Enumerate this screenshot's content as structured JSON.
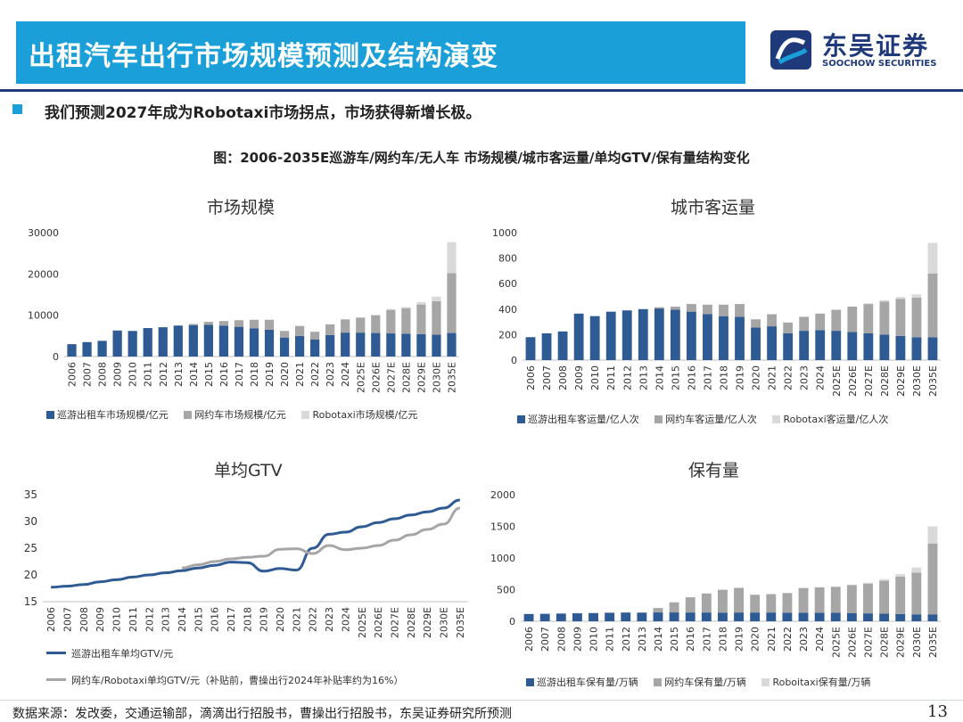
{
  "header": {
    "title": "出租汽车出行市场规模预测及结构演变"
  },
  "logo": {
    "cn": "东吴证券",
    "en": "SOOCHOW SECURITIES"
  },
  "bullet": "我们预测2027年成为Robotaxi市场拐点，市场获得新增长极。",
  "figure_title": "图：2006-2035E巡游车/网约车/无人车 市场规模/城市客运量/单均GTV/保有量结构变化",
  "colors": {
    "taxi": "#2f5b94",
    "ridehail": "#a6a6a6",
    "robotaxi": "#d9d9d9",
    "accent": "#1a9fd8"
  },
  "chart_data": [
    {
      "type": "stacked_bar",
      "title": "市场规模",
      "categories": [
        "2006",
        "2007",
        "2008",
        "2009",
        "2010",
        "2011",
        "2012",
        "2013",
        "2014",
        "2015",
        "2016",
        "2017",
        "2018",
        "2019",
        "2020",
        "2021",
        "2022",
        "2023",
        "2024",
        "2025E",
        "2026E",
        "2027E",
        "2028E",
        "2029E",
        "2030E",
        "2035E"
      ],
      "yticks": [
        "0",
        "10000",
        "20000",
        "30000"
      ],
      "ylim": [
        0,
        30000
      ],
      "series": [
        {
          "name": "巡游出租车市场规模/亿元",
          "values": [
            3000,
            3500,
            3800,
            6300,
            6200,
            6900,
            7100,
            7500,
            7600,
            7700,
            7500,
            7200,
            6800,
            6500,
            4600,
            5000,
            4100,
            5200,
            5800,
            5800,
            5700,
            5600,
            5500,
            5400,
            5300,
            5700
          ]
        },
        {
          "name": "网约车市场规模/亿元",
          "values": [
            0,
            0,
            0,
            0,
            0,
            0,
            0,
            0,
            300,
            700,
            1100,
            1600,
            2100,
            2400,
            1600,
            2400,
            1900,
            2600,
            3200,
            3600,
            4300,
            5700,
            6200,
            7200,
            8100,
            14500
          ]
        },
        {
          "name": "Robotaxi市场规模/亿元",
          "values": [
            0,
            0,
            0,
            0,
            0,
            0,
            0,
            0,
            0,
            0,
            0,
            0,
            0,
            0,
            0,
            0,
            0,
            0,
            0,
            100,
            100,
            200,
            300,
            600,
            1100,
            7500
          ]
        }
      ]
    },
    {
      "type": "stacked_bar",
      "title": "城市客运量",
      "categories": [
        "2006",
        "2007",
        "2008",
        "2009",
        "2010",
        "2011",
        "2012",
        "2013",
        "2014",
        "2015",
        "2016",
        "2017",
        "2018",
        "2019",
        "2020",
        "2021",
        "2022",
        "2023",
        "2024",
        "2025E",
        "2026E",
        "2027E",
        "2028E",
        "2029E",
        "2030E",
        "2035E"
      ],
      "yticks": [
        "0",
        "200",
        "400",
        "600",
        "800",
        "1000"
      ],
      "ylim": [
        0,
        1000
      ],
      "series": [
        {
          "name": "巡游出租车客运量/亿人次",
          "values": [
            180,
            210,
            225,
            365,
            345,
            380,
            390,
            400,
            405,
            395,
            380,
            360,
            345,
            340,
            255,
            265,
            210,
            230,
            235,
            230,
            220,
            210,
            200,
            190,
            180,
            180
          ]
        },
        {
          "name": "网约车客运量/亿人次",
          "values": [
            0,
            0,
            0,
            0,
            0,
            0,
            0,
            0,
            10,
            25,
            60,
            75,
            90,
            100,
            65,
            95,
            85,
            110,
            130,
            165,
            200,
            230,
            260,
            290,
            310,
            500
          ]
        },
        {
          "name": "Robotaxi客运量/亿人次",
          "values": [
            0,
            0,
            0,
            0,
            0,
            0,
            0,
            0,
            0,
            0,
            0,
            0,
            0,
            0,
            0,
            0,
            0,
            0,
            0,
            0,
            0,
            5,
            10,
            15,
            25,
            240
          ]
        }
      ]
    },
    {
      "type": "line",
      "title": "单均GTV",
      "categories": [
        "2006",
        "2007",
        "2008",
        "2009",
        "2010",
        "2011",
        "2012",
        "2013",
        "2014",
        "2015",
        "2016",
        "2017",
        "2018",
        "2019",
        "2020",
        "2021",
        "2022",
        "2023",
        "2024",
        "2025E",
        "2026E",
        "2027E",
        "2028E",
        "2029E",
        "2030E",
        "2035E"
      ],
      "yticks": [
        "15",
        "20",
        "25",
        "30",
        "35"
      ],
      "ylim": [
        15,
        35
      ],
      "series": [
        {
          "name": "巡游出租车单均GTV/元",
          "values": [
            17.7,
            17.9,
            18.2,
            18.7,
            19.1,
            19.6,
            20.0,
            20.4,
            20.8,
            21.3,
            21.8,
            22.4,
            22.3,
            20.7,
            21.2,
            20.9,
            25.0,
            27.6,
            28.0,
            29.0,
            29.8,
            30.5,
            31.2,
            31.8,
            32.5,
            34.0
          ]
        },
        {
          "name": "网约车/Robotaxi单均GTV/元（补贴前，曹操出行2024年补贴率约为16%）",
          "values": [
            null,
            null,
            null,
            null,
            null,
            null,
            null,
            null,
            21.3,
            21.9,
            22.5,
            23.0,
            23.3,
            23.5,
            24.8,
            24.9,
            24.0,
            25.5,
            24.7,
            25.0,
            25.5,
            26.5,
            27.5,
            28.5,
            29.5,
            32.5
          ]
        }
      ]
    },
    {
      "type": "stacked_bar",
      "title": "保有量",
      "categories": [
        "2006",
        "2007",
        "2008",
        "2009",
        "2010",
        "2011",
        "2012",
        "2013",
        "2014",
        "2015",
        "2016",
        "2017",
        "2018",
        "2019",
        "2020",
        "2021",
        "2022",
        "2023",
        "2024",
        "2025E",
        "2026E",
        "2027E",
        "2028E",
        "2029E",
        "2030E",
        "2035E"
      ],
      "yticks": [
        "0",
        "500",
        "1000",
        "1500",
        "2000"
      ],
      "ylim": [
        0,
        2000
      ],
      "series": [
        {
          "name": "巡游出租车保有量/万辆",
          "values": [
            115,
            118,
            122,
            126,
            130,
            135,
            138,
            137,
            140,
            140,
            139,
            139,
            138,
            139,
            139,
            139,
            136,
            136,
            136,
            135,
            130,
            125,
            120,
            115,
            110,
            110
          ]
        },
        {
          "name": "网约车保有量/万辆",
          "values": [
            0,
            0,
            0,
            0,
            0,
            0,
            0,
            0,
            70,
            160,
            240,
            300,
            360,
            390,
            280,
            290,
            310,
            390,
            400,
            410,
            440,
            470,
            520,
            590,
            660,
            1120
          ]
        },
        {
          "name": "Roboitaxi保有量/万辆",
          "values": [
            0,
            0,
            0,
            0,
            0,
            0,
            0,
            0,
            0,
            0,
            0,
            0,
            0,
            0,
            0,
            0,
            0,
            0,
            0,
            5,
            10,
            15,
            25,
            40,
            80,
            270
          ]
        }
      ]
    }
  ],
  "source": "数据来源：发改委，交通运输部，滴滴出行招股书，曹操出行招股书，东吴证券研究所预测",
  "page_number": "13"
}
